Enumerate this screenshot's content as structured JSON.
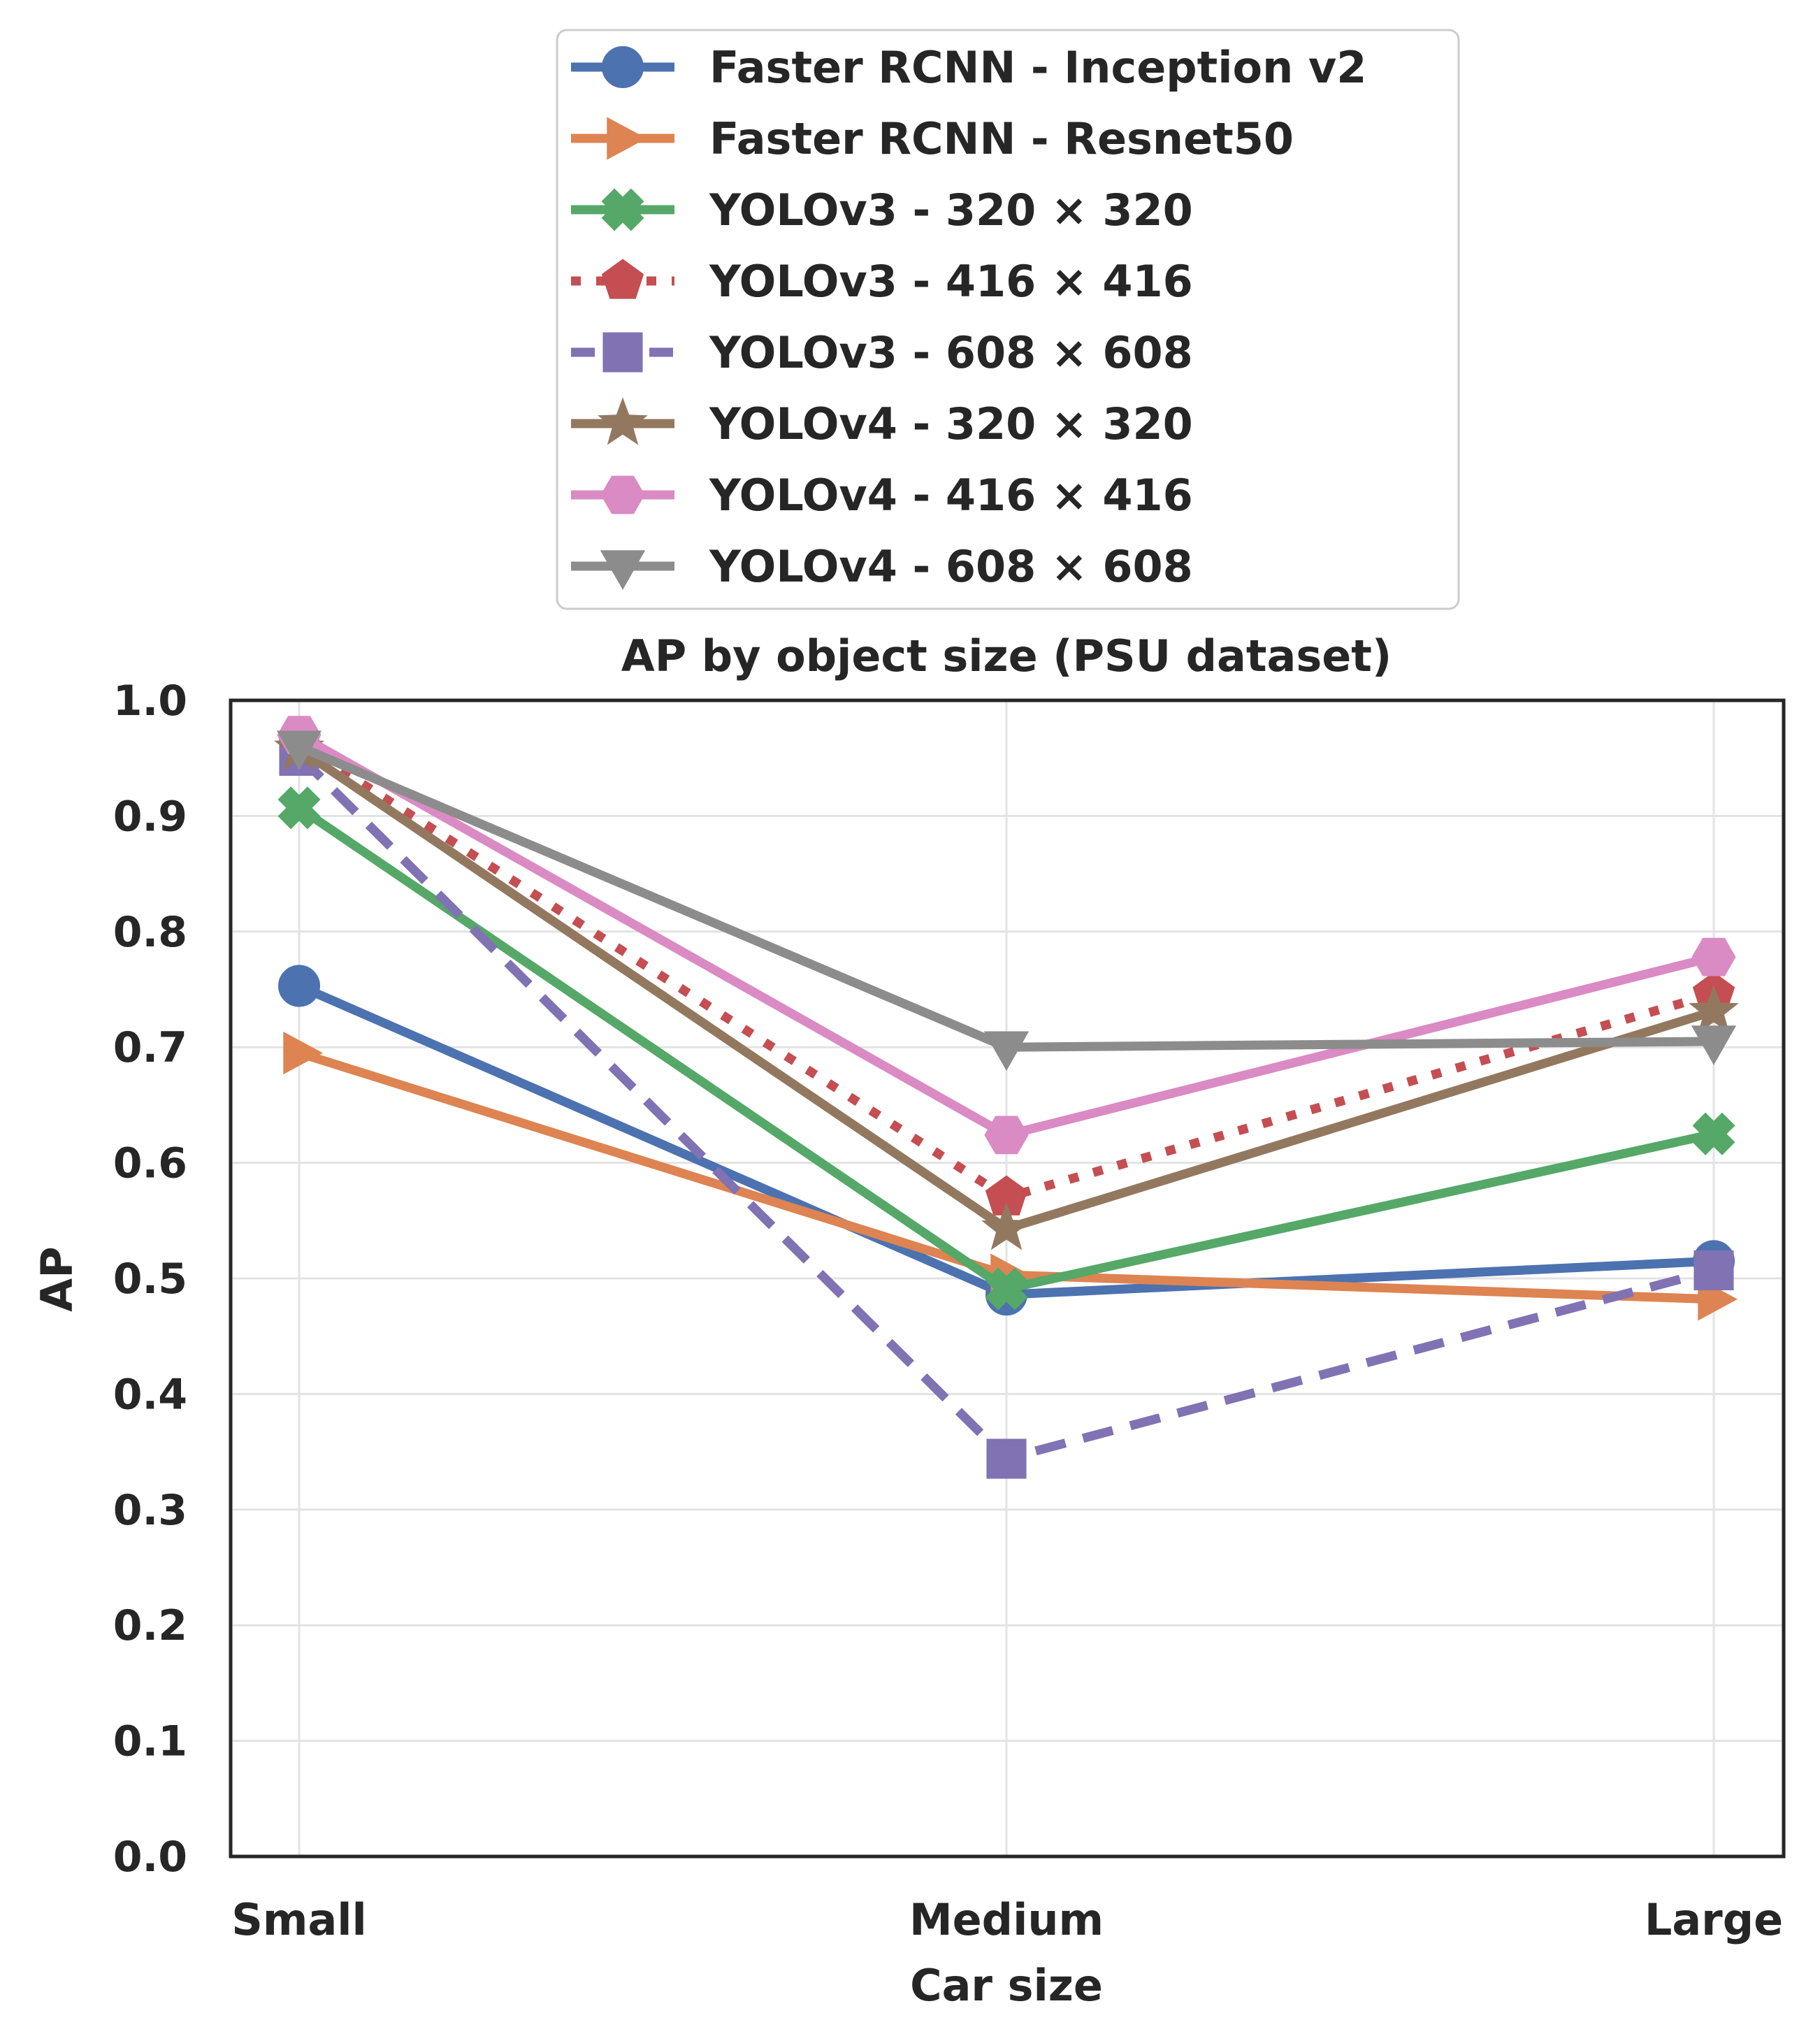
{
  "chart_data": {
    "type": "line",
    "title": "AP by object size (PSU dataset)",
    "xlabel": "Car size",
    "ylabel": "AP",
    "categories": [
      "Small",
      "Medium",
      "Large"
    ],
    "ylim": [
      0.0,
      1.0
    ],
    "yticks": [
      "0.0",
      "0.1",
      "0.2",
      "0.3",
      "0.4",
      "0.5",
      "0.6",
      "0.7",
      "0.8",
      "0.9",
      "1.0"
    ],
    "grid": true,
    "legend_position": "top-center-outside",
    "series": [
      {
        "name": "Faster RCNN - Inception v2",
        "values": [
          0.753,
          0.486,
          0.515
        ],
        "color": "#4c72b0",
        "marker": "circle",
        "linestyle": "solid"
      },
      {
        "name": "Faster RCNN - Resnet50",
        "values": [
          0.695,
          0.503,
          0.482
        ],
        "color": "#dd8452",
        "marker": "triangle-right",
        "linestyle": "solid"
      },
      {
        "name": "YOLOv3 - 320 × 320",
        "values": [
          0.907,
          0.491,
          0.625
        ],
        "color": "#55a868",
        "marker": "x-filled",
        "linestyle": "solid"
      },
      {
        "name": "YOLOv3 - 416 × 416",
        "values": [
          0.963,
          0.57,
          0.746
        ],
        "color": "#c44e52",
        "marker": "pentagon",
        "linestyle": "dotted"
      },
      {
        "name": "YOLOv3 - 608 × 608",
        "values": [
          0.952,
          0.344,
          0.507
        ],
        "color": "#8172b3",
        "marker": "square",
        "linestyle": "dashed"
      },
      {
        "name": "YOLOv4 - 320 × 320",
        "values": [
          0.958,
          0.543,
          0.731
        ],
        "color": "#937860",
        "marker": "star",
        "linestyle": "solid"
      },
      {
        "name": "YOLOv4 - 416 × 416",
        "values": [
          0.97,
          0.624,
          0.778
        ],
        "color": "#da8bc3",
        "marker": "hexagon",
        "linestyle": "solid"
      },
      {
        "name": "YOLOv4 - 608 × 608",
        "values": [
          0.96,
          0.7,
          0.705
        ],
        "color": "#8c8c8c",
        "marker": "triangle-down",
        "linestyle": "solid"
      }
    ]
  }
}
